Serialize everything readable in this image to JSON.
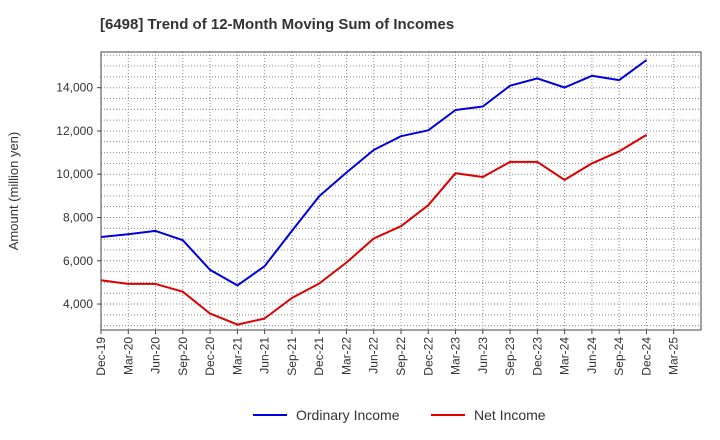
{
  "chart_data": {
    "type": "line",
    "title": "[6498]  Trend of 12-Month Moving Sum of Incomes",
    "xlabel": "",
    "ylabel": "Amount (million yen)",
    "ylim": [
      2800,
      15650
    ],
    "yticks": [
      4000,
      6000,
      8000,
      10000,
      12000,
      14000
    ],
    "ytick_labels": [
      "4,000",
      "6,000",
      "8,000",
      "10,000",
      "12,000",
      "14,000"
    ],
    "categories": [
      "Dec-19",
      "Mar-20",
      "Jun-20",
      "Sep-20",
      "Dec-20",
      "Mar-21",
      "Jun-21",
      "Sep-21",
      "Dec-21",
      "Mar-22",
      "Jun-22",
      "Sep-22",
      "Dec-22",
      "Mar-23",
      "Jun-23",
      "Sep-23",
      "Dec-23",
      "Mar-24",
      "Jun-24",
      "Sep-24",
      "Dec-24",
      "Mar-25"
    ],
    "grid": true,
    "legend_position": "bottom-center",
    "series": [
      {
        "name": "Ordinary Income",
        "color": "#0000dd",
        "values": [
          7100,
          7230,
          7380,
          6950,
          5580,
          4860,
          5750,
          7380,
          8980,
          10080,
          11120,
          11760,
          12030,
          12970,
          13130,
          14090,
          14430,
          14010,
          14550,
          14350,
          15280,
          null
        ]
      },
      {
        "name": "Net Income",
        "color": "#dd0000",
        "values": [
          5100,
          4930,
          4930,
          4570,
          3560,
          3050,
          3330,
          4280,
          4950,
          5920,
          7030,
          7600,
          8570,
          10050,
          9870,
          10570,
          10570,
          9740,
          10500,
          11060,
          11820,
          null
        ]
      }
    ]
  }
}
